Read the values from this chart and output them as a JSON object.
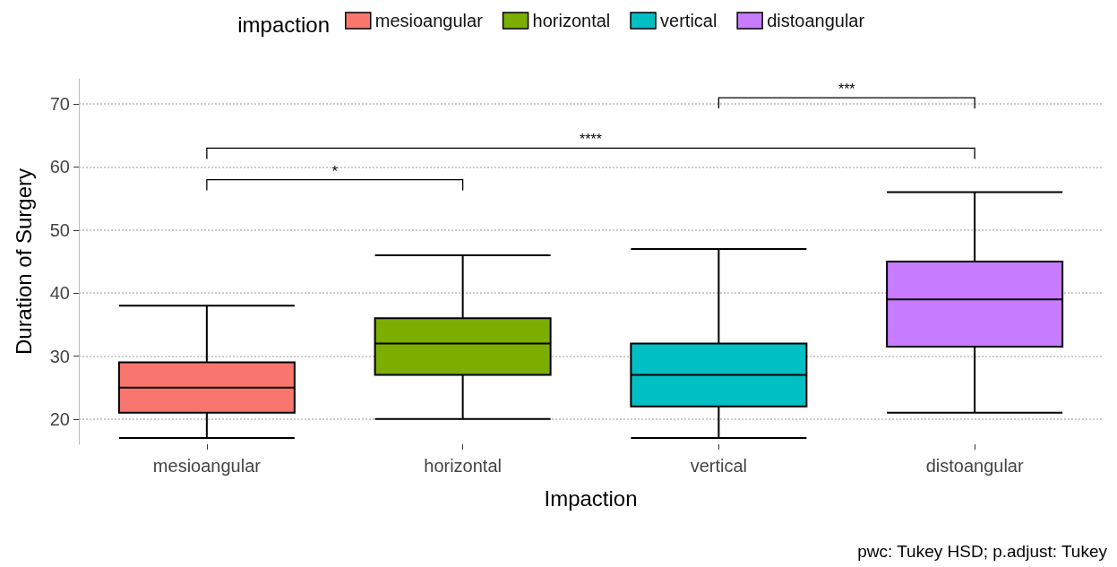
{
  "chart_data": {
    "type": "box",
    "xlabel": "Impaction",
    "ylabel": "Duration of Surgery",
    "legend_title": "impaction",
    "legend": "top",
    "categories": [
      "mesioangular",
      "horizontal",
      "vertical",
      "distoangular"
    ],
    "series": [
      {
        "name": "mesioangular",
        "color": "#f8766d",
        "boxes": [
          {
            "low": 17,
            "q1": 21,
            "median": 25,
            "q3": 29,
            "high": 38
          },
          null,
          null,
          null
        ]
      },
      {
        "name": "horizontal",
        "color": "#7cae00",
        "boxes": [
          null,
          {
            "low": 20,
            "q1": 27,
            "median": 32,
            "q3": 36,
            "high": 46
          },
          null,
          null
        ]
      },
      {
        "name": "vertical",
        "color": "#00bfc4",
        "boxes": [
          null,
          null,
          {
            "low": 17,
            "q1": 22,
            "median": 27,
            "q3": 32,
            "high": 47
          },
          null
        ]
      },
      {
        "name": "distoangular",
        "color": "#c77cff",
        "boxes": [
          null,
          null,
          null,
          {
            "low": 21,
            "q1": 31.5,
            "median": 39,
            "q3": 45,
            "high": 56
          }
        ]
      }
    ],
    "ylim": [
      16,
      74
    ],
    "yticks": [
      20,
      30,
      40,
      50,
      60,
      70
    ],
    "grid": "y",
    "annotations": [
      "*",
      "****",
      "***",
      "pwc: Tukey HSD; p.adjust: Tukey"
    ]
  }
}
